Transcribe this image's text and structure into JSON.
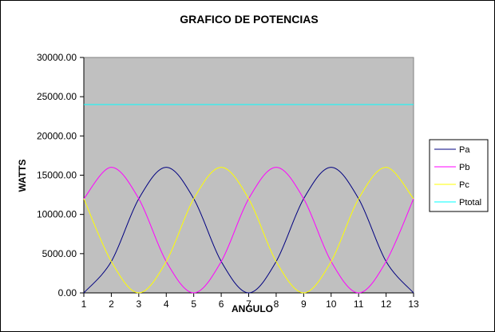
{
  "chart_data": {
    "type": "line",
    "title": "GRAFICO DE POTENCIAS",
    "xlabel": "ANGULO",
    "ylabel": "WATTS",
    "x": [
      1,
      2,
      3,
      4,
      5,
      6,
      7,
      8,
      9,
      10,
      11,
      12,
      13
    ],
    "xlim": [
      1,
      13
    ],
    "ylim": [
      0,
      30000
    ],
    "yticks": [
      "0.00",
      "5000.00",
      "10000.00",
      "15000.00",
      "20000.00",
      "25000.00",
      "30000.00"
    ],
    "xticks": [
      "1",
      "2",
      "3",
      "4",
      "5",
      "6",
      "7",
      "8",
      "9",
      "10",
      "11",
      "12",
      "13"
    ],
    "grid": false,
    "legend": "right",
    "series": [
      {
        "name": "Pa",
        "color": "#000080",
        "values": [
          0,
          4000,
          12000,
          16000,
          12000,
          4000,
          0,
          4000,
          12000,
          16000,
          12000,
          4000,
          0
        ]
      },
      {
        "name": "Pb",
        "color": "#ff00ff",
        "values": [
          12000,
          16000,
          12000,
          4000,
          0,
          4000,
          12000,
          16000,
          12000,
          4000,
          0,
          4000,
          12000
        ]
      },
      {
        "name": "Pc",
        "color": "#ffff00",
        "values": [
          12000,
          4000,
          0,
          4000,
          12000,
          16000,
          12000,
          4000,
          0,
          4000,
          12000,
          16000,
          12000
        ]
      },
      {
        "name": "Ptotal",
        "color": "#00ffff",
        "values": [
          24000,
          24000,
          24000,
          24000,
          24000,
          24000,
          24000,
          24000,
          24000,
          24000,
          24000,
          24000,
          24000
        ]
      }
    ]
  }
}
